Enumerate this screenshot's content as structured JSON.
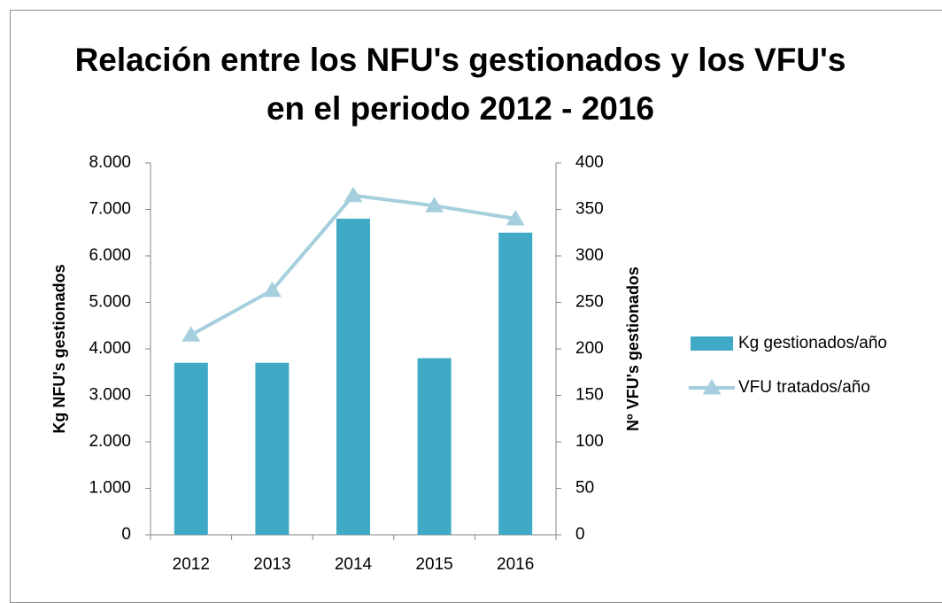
{
  "chart_data": {
    "type": "bar_line",
    "title": "Relación entre los NFU's gestionados y los VFU's en el periodo 2012 - 2016",
    "ylabel": "Kg NFU's gestionados",
    "y2label": "Nº VFU's gestionados",
    "categories": [
      "2012",
      "2013",
      "2014",
      "2015",
      "2016"
    ],
    "series": [
      {
        "name": "Kg gestionados/año",
        "type": "bar",
        "color": "#3fa9c6",
        "values": [
          3700,
          3700,
          6800,
          3800,
          6500
        ]
      },
      {
        "name": "VFU tratados/año",
        "type": "line",
        "axis": "y2",
        "color": "#a5cfdd",
        "marker": "triangle",
        "values": [
          215,
          263,
          365,
          354,
          340
        ]
      }
    ],
    "ylim": [
      0,
      8000
    ],
    "yticks": [
      0,
      {
        "value": 1000,
        "label": "1.000"
      },
      {
        "value": 2000,
        "label": "2.000"
      },
      {
        "value": 3000,
        "label": "3.000"
      },
      {
        "value": 4000,
        "label": "4.000"
      },
      {
        "value": 5000,
        "label": "5.000"
      },
      {
        "value": 6000,
        "label": "6.000"
      },
      {
        "value": 7000,
        "label": "7.000"
      },
      {
        "value": 8000,
        "label": "8.000"
      }
    ],
    "y2lim": [
      0,
      400
    ],
    "y2ticks": [
      0,
      50,
      100,
      150,
      200,
      250,
      300,
      350,
      400
    ],
    "legend": "right"
  }
}
